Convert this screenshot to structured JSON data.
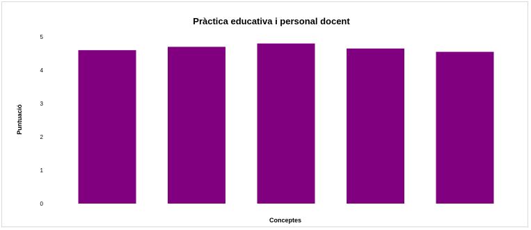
{
  "chart_data": {
    "type": "bar",
    "title": "Pràctica educativa i personal docent",
    "xlabel": "Conceptes",
    "ylabel": "Puntuació",
    "categories": [
      "",
      "",
      "",
      "",
      ""
    ],
    "values": [
      4.6,
      4.7,
      4.8,
      4.65,
      4.55
    ],
    "ylim": [
      0,
      5
    ],
    "yticks": [
      "0",
      "1",
      "2",
      "3",
      "4",
      "5"
    ],
    "grid": false,
    "legend": "none",
    "colors": {
      "bar": "#800080",
      "border": "#d9d9d9"
    }
  }
}
